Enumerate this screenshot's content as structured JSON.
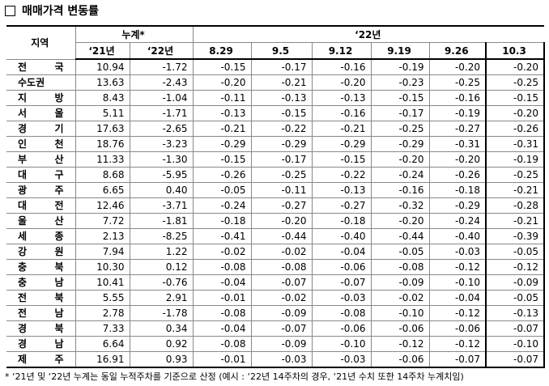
{
  "header": {
    "title": "매매가격 변동률"
  },
  "table": {
    "region_header": "지역",
    "cumulative_header": "누계*",
    "weekly_header": "‘22년",
    "subheaders": [
      "‘21년",
      "‘22년",
      "8.29",
      "9.5",
      "9.12",
      "9.19",
      "9.26",
      "10.3"
    ],
    "rows": [
      [
        "전 국",
        "10.94",
        "-1.72",
        "-0.15",
        "-0.17",
        "-0.16",
        "-0.19",
        "-0.20",
        "-0.20"
      ],
      [
        "수도권",
        "13.63",
        "-2.43",
        "-0.20",
        "-0.21",
        "-0.20",
        "-0.23",
        "-0.25",
        "-0.25"
      ],
      [
        "지 방",
        "8.43",
        "-1.04",
        "-0.11",
        "-0.13",
        "-0.13",
        "-0.15",
        "-0.16",
        "-0.15"
      ],
      [
        "서 울",
        "5.11",
        "-1.71",
        "-0.13",
        "-0.15",
        "-0.16",
        "-0.17",
        "-0.19",
        "-0.20"
      ],
      [
        "경 기",
        "17.63",
        "-2.65",
        "-0.21",
        "-0.22",
        "-0.21",
        "-0.25",
        "-0.27",
        "-0.26"
      ],
      [
        "인 천",
        "18.76",
        "-3.23",
        "-0.29",
        "-0.29",
        "-0.29",
        "-0.29",
        "-0.31",
        "-0.31"
      ],
      [
        "부 산",
        "11.33",
        "-1.30",
        "-0.15",
        "-0.17",
        "-0.15",
        "-0.20",
        "-0.20",
        "-0.19"
      ],
      [
        "대 구",
        "8.68",
        "-5.95",
        "-0.26",
        "-0.25",
        "-0.22",
        "-0.24",
        "-0.26",
        "-0.25"
      ],
      [
        "광 주",
        "6.65",
        "0.40",
        "-0.05",
        "-0.11",
        "-0.13",
        "-0.16",
        "-0.18",
        "-0.21"
      ],
      [
        "대 전",
        "12.46",
        "-3.71",
        "-0.24",
        "-0.27",
        "-0.27",
        "-0.32",
        "-0.29",
        "-0.28"
      ],
      [
        "울 산",
        "7.72",
        "-1.81",
        "-0.18",
        "-0.20",
        "-0.18",
        "-0.20",
        "-0.24",
        "-0.21"
      ],
      [
        "세 종",
        "2.13",
        "-8.25",
        "-0.41",
        "-0.44",
        "-0.40",
        "-0.44",
        "-0.40",
        "-0.39"
      ],
      [
        "강 원",
        "7.94",
        "1.22",
        "-0.02",
        "-0.02",
        "-0.04",
        "-0.05",
        "-0.03",
        "-0.05"
      ],
      [
        "충 북",
        "10.30",
        "0.12",
        "-0.08",
        "-0.08",
        "-0.06",
        "-0.08",
        "-0.12",
        "-0.12"
      ],
      [
        "충 남",
        "10.41",
        "-0.76",
        "-0.04",
        "-0.07",
        "-0.07",
        "-0.09",
        "-0.10",
        "-0.09"
      ],
      [
        "전 북",
        "5.55",
        "2.91",
        "-0.01",
        "-0.02",
        "-0.03",
        "-0.02",
        "-0.04",
        "-0.05"
      ],
      [
        "전 남",
        "2.78",
        "-1.78",
        "-0.08",
        "-0.09",
        "-0.08",
        "-0.10",
        "-0.12",
        "-0.13"
      ],
      [
        "경 북",
        "7.33",
        "0.34",
        "-0.04",
        "-0.07",
        "-0.06",
        "-0.06",
        "-0.06",
        "-0.07"
      ],
      [
        "경 남",
        "6.64",
        "0.92",
        "-0.08",
        "-0.09",
        "-0.10",
        "-0.12",
        "-0.12",
        "-0.10"
      ],
      [
        "제 주",
        "16.91",
        "0.93",
        "-0.01",
        "-0.03",
        "-0.03",
        "-0.06",
        "-0.07",
        "-0.07"
      ]
    ]
  },
  "footnote": "* ‘21년 및 ‘22년 누계는 동일 누적주차를 기준으로 산정 (예시 : ‘22년 14주차의 경우, ‘21년 수치 또한 14주차 누계치임)"
}
